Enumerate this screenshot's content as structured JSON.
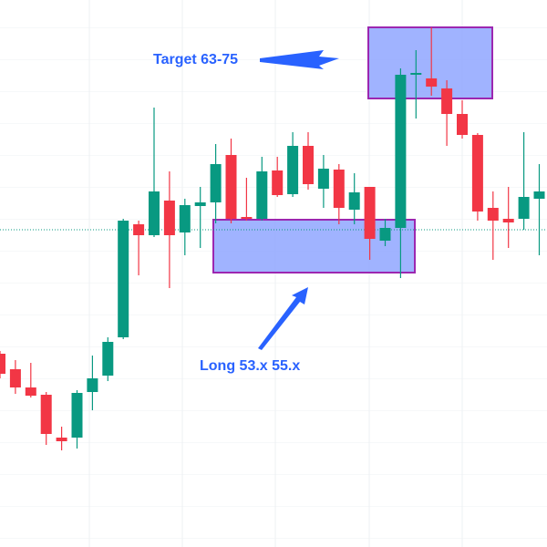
{
  "chart_data": {
    "type": "candlestick",
    "ylim": [
      0,
      60
    ],
    "up_color": "#089981",
    "down_color": "#f23645",
    "open": [
      21.2,
      19.5,
      17.5,
      16.7,
      12.0,
      12.0,
      17.0,
      18.8,
      23.0,
      35.4,
      34.2,
      38.0,
      34.5,
      37.4,
      37.8,
      43.0,
      36.2,
      36.0,
      41.3,
      38.7,
      44.0,
      39.3,
      41.4,
      37.0,
      39.5,
      33.6,
      35.0,
      51.8,
      51.4,
      50.3,
      47.5,
      45.2,
      37.2,
      36.0,
      36.0,
      38.2
    ],
    "close": [
      19.0,
      17.5,
      16.6,
      12.4,
      11.6,
      16.9,
      18.5,
      22.5,
      35.8,
      34.2,
      39.0,
      34.2,
      37.5,
      37.8,
      42.0,
      36.0,
      36.0,
      41.2,
      38.6,
      44.0,
      39.8,
      41.5,
      37.2,
      38.9,
      33.8,
      35.0,
      51.8,
      52.0,
      50.5,
      47.5,
      45.2,
      36.8,
      35.8,
      35.6,
      38.4,
      39.0
    ],
    "high": [
      21.5,
      20.5,
      20.2,
      17.0,
      13.2,
      17.2,
      21.0,
      23.0,
      36.0,
      35.8,
      48.2,
      41.2,
      38.2,
      39.5,
      44.2,
      44.8,
      40.5,
      42.8,
      42.8,
      45.5,
      45.5,
      43.0,
      42.0,
      41.0,
      39.5,
      36.0,
      52.5,
      54.5,
      57.0,
      51.2,
      49.0,
      45.4,
      39.0,
      39.5,
      45.5,
      42.0
    ],
    "low": [
      18.5,
      16.8,
      16.4,
      11.2,
      10.6,
      10.8,
      15.0,
      18.2,
      22.8,
      29.8,
      34.0,
      28.4,
      32.0,
      32.8,
      35.5,
      35.5,
      35.8,
      35.8,
      38.4,
      38.4,
      39.2,
      37.2,
      35.4,
      35.4,
      31.5,
      33.0,
      29.5,
      47.0,
      49.5,
      44.0,
      44.8,
      35.8,
      31.5,
      32.8,
      34.8,
      32.0
    ],
    "level": 34.8,
    "level_color": "#089981",
    "zones": [
      {
        "label": "Long 53.x 55.x",
        "low": 30.1,
        "high": 35.9,
        "fill": "#8fa6ff",
        "stroke": "#9c27b0"
      },
      {
        "label": "Target 63-75",
        "low": 49.2,
        "high": 57.0,
        "fill": "#8fa6ff",
        "stroke": "#9c27b0"
      }
    ]
  }
}
